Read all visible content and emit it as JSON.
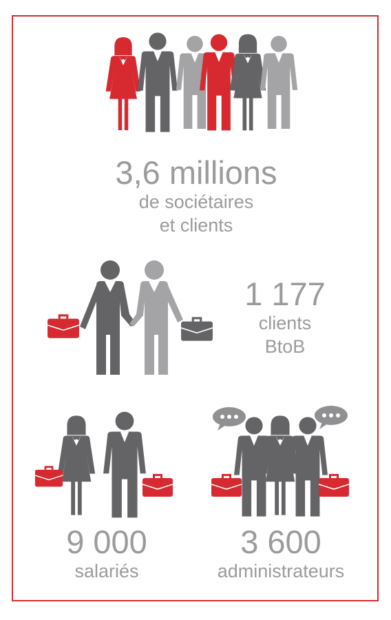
{
  "colors": {
    "red": "#d62a30",
    "dark_gray": "#646466",
    "light_gray": "#a4a4a6",
    "text_gray": "#9b9b9e"
  },
  "stats": {
    "members": {
      "value": "3,6 millions",
      "label_line1": "de sociétaires",
      "label_line2": "et clients"
    },
    "btob": {
      "value": "1 177",
      "label_line1": "clients",
      "label_line2": "BtoB"
    },
    "employees": {
      "value": "9 000",
      "label": "salariés"
    },
    "directors": {
      "value": "3 600",
      "label": "administrateurs"
    }
  },
  "icons": [
    "crowd-icon",
    "handshake-icon",
    "employees-icon",
    "directors-icon",
    "briefcase-icon",
    "speech-bubble-icon"
  ]
}
